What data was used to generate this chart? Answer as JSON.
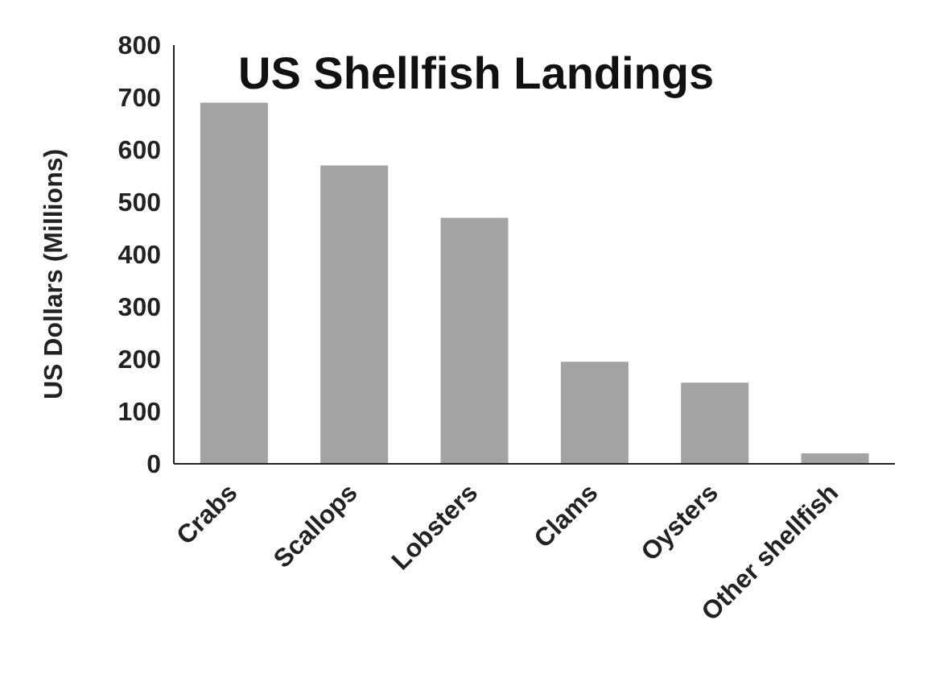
{
  "chart_data": {
    "type": "bar",
    "title": "US Shellfish Landings",
    "ylabel": "US Dollars  (Millions)",
    "categories": [
      "Crabs",
      "Scallops",
      "Lobsters",
      "Clams",
      "Oysters",
      "Other shellfish"
    ],
    "values": [
      690,
      570,
      470,
      195,
      155,
      20
    ],
    "color": "#a3a3a3",
    "ylim": [
      0,
      800
    ],
    "yticks": [
      0,
      100,
      200,
      300,
      400,
      500,
      600,
      700,
      800
    ],
    "grid": false,
    "legend": false
  }
}
